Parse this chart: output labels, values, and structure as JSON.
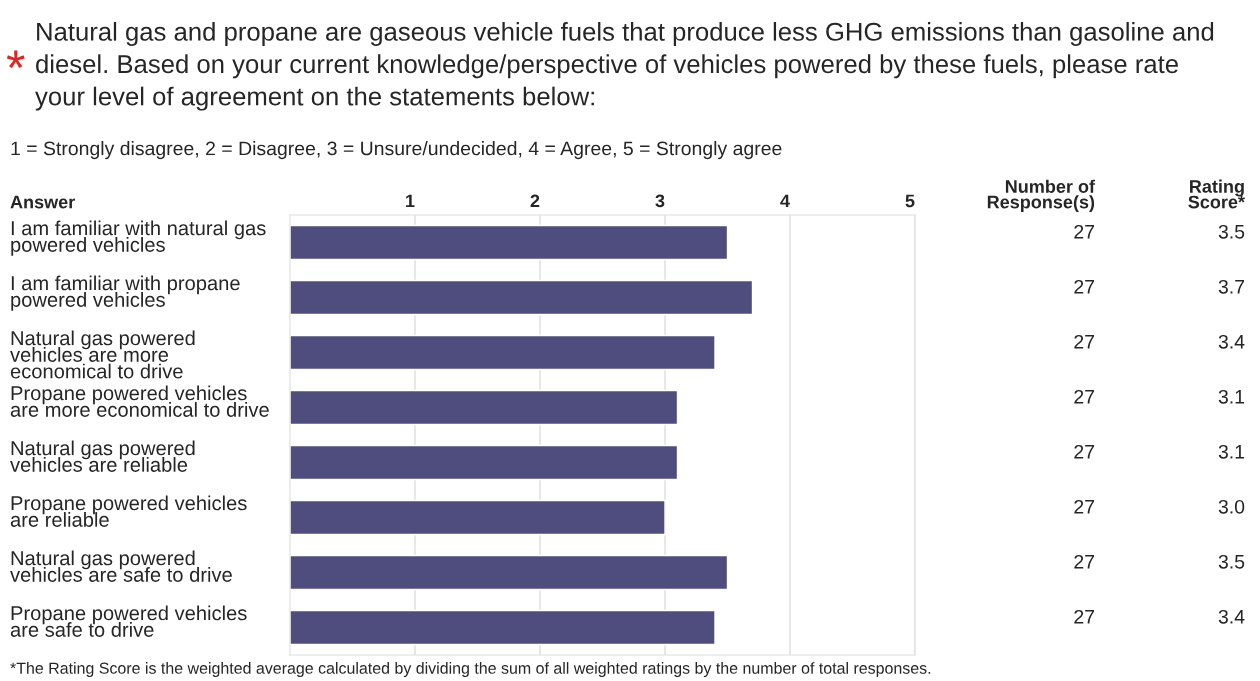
{
  "chart_data": {
    "type": "bar",
    "orientation": "horizontal",
    "title": "Natural gas and propane are gaseous vehicle fuels that produce less GHG emissions than gasoline and\ndiesel. Based on your current knowledge/perspective of vehicles powered by these fuels, please rate\nyour level of agreement on the statements below:",
    "subtitle": "1 = Strongly disagree, 2 = Disagree, 3 = Unsure/undecided, 4 = Agree, 5 = Strongly agree",
    "categories": [
      "I am familiar with natural gas\npowered vehicles",
      "I am familiar with propane\npowered vehicles",
      "Natural gas powered\nvehicles are more\neconomical to drive",
      "Propane powered vehicles\nare more economical to drive",
      "Natural gas powered\nvehicles are reliable",
      "Propane powered vehicles\nare reliable",
      "Natural gas powered\nvehicles are safe to drive",
      "Propane powered vehicles\nare safe to drive"
    ],
    "values": [
      3.5,
      3.7,
      3.4,
      3.1,
      3.1,
      3.0,
      3.5,
      3.4
    ],
    "color": "#4f4d7d",
    "xlim": [
      0,
      5
    ],
    "xticks": [
      1,
      2,
      3,
      4,
      5
    ],
    "grid": "x",
    "annotations": [
      "*",
      "Answer",
      "Number of\nResponse(s)",
      "Rating\nScore*",
      "*The Rating Score is the weighted average calculated by dividing the sum of all weighted ratings by the number of total responses.",
      "27",
      "3.5",
      "27",
      "3.7",
      "27",
      "3.4",
      "27",
      "3.1",
      "27",
      "3.1",
      "27",
      "3.0",
      "27",
      "3.5",
      "27",
      "3.4"
    ]
  }
}
